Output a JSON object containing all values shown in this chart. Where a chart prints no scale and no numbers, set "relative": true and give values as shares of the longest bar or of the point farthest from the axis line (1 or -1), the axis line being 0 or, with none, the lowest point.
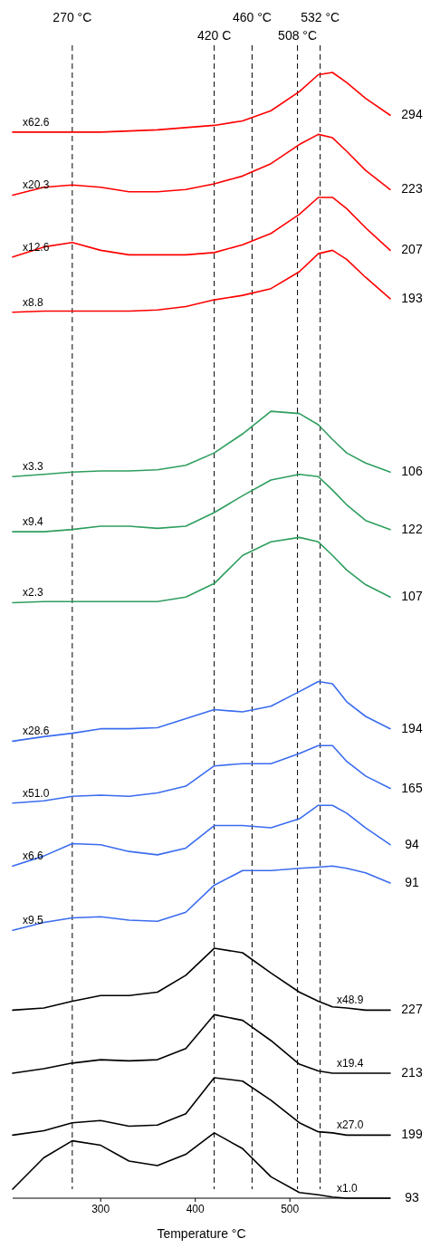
{
  "chart_data": {
    "type": "line",
    "relative": true,
    "tick_labels": "x",
    "xlim": [
      207,
      606
    ],
    "xticks": [
      300,
      400,
      500
    ],
    "xlabel": "Temperature °C",
    "x": [
      207,
      240,
      270,
      300,
      330,
      360,
      390,
      420,
      450,
      480,
      510,
      530,
      545,
      560,
      580,
      606
    ],
    "series": [
      {
        "name": "x62.6",
        "color": "#ff0000",
        "values": [
          0.947,
          0.947,
          0.947,
          0.947,
          0.948,
          0.949,
          0.951,
          0.953,
          0.957,
          0.966,
          0.983,
          0.998,
          1.0,
          0.991,
          0.977,
          0.962
        ]
      },
      {
        "name": "x20.3",
        "color": "#ff0000",
        "values": [
          0.891,
          0.898,
          0.9,
          0.898,
          0.894,
          0.894,
          0.896,
          0.901,
          0.908,
          0.919,
          0.936,
          0.945,
          0.942,
          0.93,
          0.913,
          0.896
        ]
      },
      {
        "name": "x12.6",
        "color": "#ff0000",
        "values": [
          0.836,
          0.845,
          0.849,
          0.842,
          0.838,
          0.838,
          0.838,
          0.84,
          0.847,
          0.857,
          0.874,
          0.889,
          0.889,
          0.879,
          0.862,
          0.842
        ]
      },
      {
        "name": "x8.8",
        "color": "#ff0000",
        "values": [
          0.787,
          0.788,
          0.788,
          0.788,
          0.788,
          0.789,
          0.792,
          0.798,
          0.802,
          0.808,
          0.823,
          0.839,
          0.842,
          0.834,
          0.818,
          0.799
        ]
      },
      {
        "name": "x3.3",
        "color": "#2e9e5e",
        "values": [
          0.641,
          0.643,
          0.645,
          0.646,
          0.646,
          0.647,
          0.651,
          0.662,
          0.679,
          0.699,
          0.697,
          0.687,
          0.674,
          0.662,
          0.653,
          0.645
        ]
      },
      {
        "name": "x9.4",
        "color": "#2e9e5e",
        "values": [
          0.592,
          0.592,
          0.594,
          0.597,
          0.597,
          0.595,
          0.597,
          0.609,
          0.624,
          0.638,
          0.643,
          0.641,
          0.629,
          0.616,
          0.602,
          0.594
        ]
      },
      {
        "name": "x2.3",
        "color": "#2e9e5e",
        "values": [
          0.529,
          0.53,
          0.53,
          0.53,
          0.53,
          0.53,
          0.534,
          0.546,
          0.571,
          0.583,
          0.587,
          0.583,
          0.571,
          0.558,
          0.545,
          0.534
        ]
      },
      {
        "name": "x28.6",
        "color": "#3a6cf0",
        "values": [
          0.406,
          0.41,
          0.413,
          0.417,
          0.417,
          0.418,
          0.426,
          0.434,
          0.432,
          0.437,
          0.45,
          0.459,
          0.457,
          0.441,
          0.428,
          0.417
        ]
      },
      {
        "name": "x51.0",
        "color": "#3a6cf0",
        "values": [
          0.351,
          0.353,
          0.357,
          0.358,
          0.357,
          0.36,
          0.366,
          0.384,
          0.386,
          0.386,
          0.395,
          0.402,
          0.402,
          0.388,
          0.375,
          0.364
        ]
      },
      {
        "name": "x6.6",
        "color": "#3a6cf0",
        "values": [
          0.295,
          0.304,
          0.315,
          0.314,
          0.308,
          0.305,
          0.311,
          0.331,
          0.331,
          0.329,
          0.337,
          0.349,
          0.349,
          0.342,
          0.329,
          0.314
        ]
      },
      {
        "name": "x9.5",
        "color": "#3a6cf0",
        "values": [
          0.238,
          0.245,
          0.249,
          0.25,
          0.247,
          0.246,
          0.254,
          0.278,
          0.291,
          0.291,
          0.293,
          0.294,
          0.295,
          0.293,
          0.289,
          0.28
        ]
      },
      {
        "name": "x48.9",
        "color": "#000000",
        "values": [
          0.167,
          0.169,
          0.175,
          0.18,
          0.18,
          0.183,
          0.198,
          0.222,
          0.218,
          0.2,
          0.183,
          0.175,
          0.17,
          0.169,
          0.167,
          0.167
        ]
      },
      {
        "name": "x19.4",
        "color": "#000000",
        "values": [
          0.111,
          0.115,
          0.12,
          0.123,
          0.122,
          0.123,
          0.133,
          0.163,
          0.158,
          0.14,
          0.119,
          0.113,
          0.111,
          0.111,
          0.111,
          0.111
        ]
      },
      {
        "name": "x27.0",
        "color": "#000000",
        "values": [
          0.056,
          0.06,
          0.067,
          0.069,
          0.064,
          0.065,
          0.075,
          0.107,
          0.104,
          0.087,
          0.067,
          0.059,
          0.058,
          0.056,
          0.056,
          0.056
        ]
      },
      {
        "name": "x1.0",
        "color": "#000000",
        "values": [
          0.008,
          0.036,
          0.051,
          0.047,
          0.033,
          0.029,
          0.039,
          0.058,
          0.044,
          0.019,
          0.005,
          0.003,
          0.001,
          0,
          0,
          0
        ]
      }
    ],
    "annotations": [
      "294",
      "223",
      "207",
      "193",
      "106",
      "122",
      "107",
      "194",
      "165",
      "94",
      "91",
      "227",
      "213",
      "199",
      "93"
    ],
    "ref_lines": [
      {
        "axis": "x",
        "value": 270,
        "label": "270 °C",
        "color": "#000000",
        "line_style": "dashed"
      },
      {
        "axis": "x",
        "value": 420,
        "label": "420 C",
        "color": "#000000",
        "line_style": "dashed"
      },
      {
        "axis": "x",
        "value": 460,
        "label": "460 °C",
        "color": "#000000",
        "line_style": "dashed"
      },
      {
        "axis": "x",
        "value": 508,
        "label": "508 °C",
        "color": "#000000",
        "line_style": "dashed"
      },
      {
        "axis": "x",
        "value": 532,
        "label": "532 °C",
        "color": "#000000",
        "line_style": "dashed"
      }
    ]
  }
}
